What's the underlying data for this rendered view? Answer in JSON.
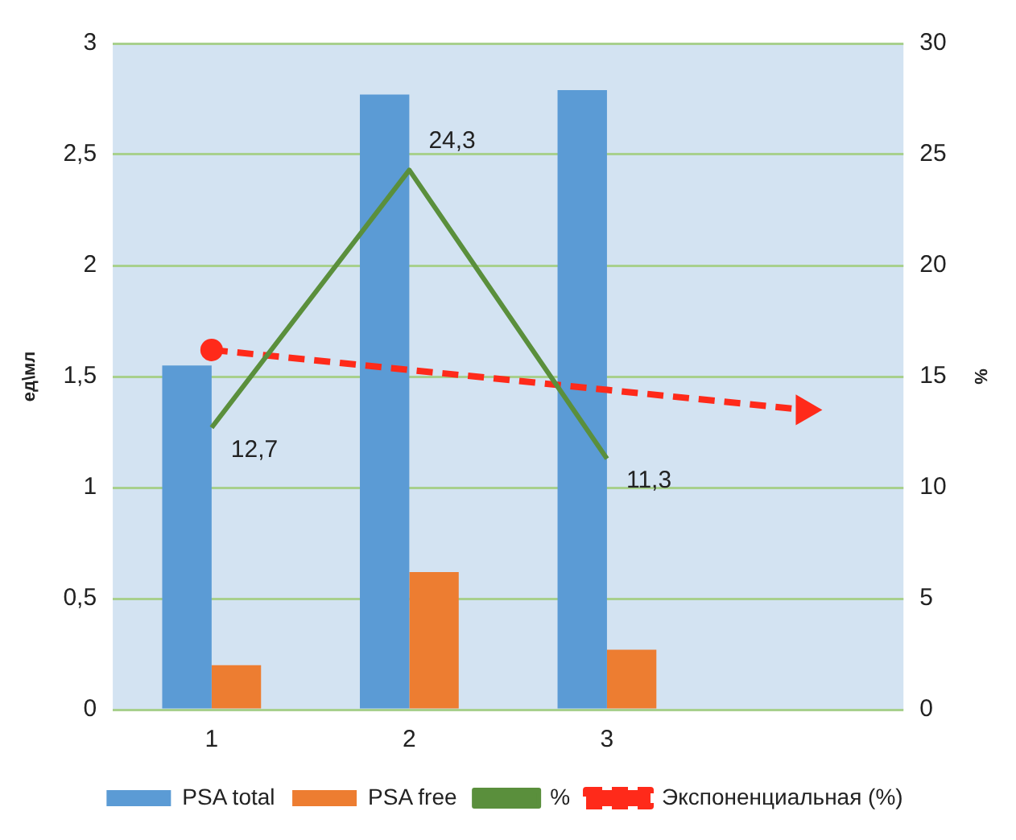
{
  "chart_data": {
    "type": "bar",
    "categories": [
      "1",
      "2",
      "3",
      null
    ],
    "ylabel": "ед\\мл",
    "y2label": "%",
    "ylim": [
      0,
      3
    ],
    "yticks": [
      0,
      {
        "value": 0.5,
        "label": "0,5"
      },
      1,
      {
        "value": 1.5,
        "label": "1,5"
      },
      2,
      {
        "value": 2.5,
        "label": "2,5"
      },
      3
    ],
    "y2lim": [
      0,
      30
    ],
    "y2ticks": [
      0,
      5,
      10,
      15,
      20,
      25,
      30
    ],
    "grid": "y",
    "legend": "bottom",
    "series": [
      {
        "name": "PSA total",
        "color": "#5b9bd5",
        "values": [
          1.55,
          2.77,
          2.79,
          null
        ]
      },
      {
        "name": "PSA free",
        "color": "#ed7d31",
        "values": [
          0.2,
          0.62,
          0.27,
          null
        ]
      },
      {
        "name": "%",
        "type": "line",
        "axis": "y2",
        "color": "#5a8f3c",
        "marker": "none",
        "line_style": "solid",
        "values": [
          12.7,
          24.3,
          11.3,
          null
        ],
        "value_labels": [
          "12,7",
          "24,3",
          "11,3",
          null
        ]
      },
      {
        "name": "Экспоненциальная (%)",
        "type": "line",
        "axis": "y2",
        "color": "#ff2a1a",
        "marker": "circle",
        "line_style": "dashed",
        "values": [
          16.2,
          15.3,
          14.4,
          13.5
        ]
      }
    ]
  }
}
